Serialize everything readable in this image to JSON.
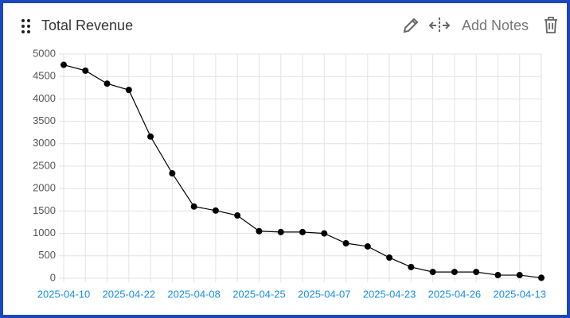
{
  "header": {
    "title": "Total Revenue",
    "action": "Add Notes"
  },
  "chart_data": {
    "type": "line",
    "categories": [
      "2025-04-10",
      null,
      null,
      "2025-04-22",
      null,
      null,
      "2025-04-08",
      null,
      null,
      "2025-04-25",
      null,
      null,
      "2025-04-07",
      null,
      null,
      "2025-04-23",
      null,
      null,
      "2025-04-26",
      null,
      null,
      "2025-04-13",
      null
    ],
    "values": [
      4760,
      4630,
      4340,
      4200,
      3160,
      2340,
      1600,
      1510,
      1400,
      1050,
      1030,
      1030,
      1000,
      780,
      710,
      460,
      250,
      140,
      140,
      140,
      70,
      70,
      10
    ],
    "color": "#000000",
    "ylim": [
      0,
      5000
    ],
    "yticks": [
      0,
      500,
      1000,
      1500,
      2000,
      2500,
      3000,
      3500,
      4000,
      4500,
      5000
    ],
    "grid": true
  }
}
